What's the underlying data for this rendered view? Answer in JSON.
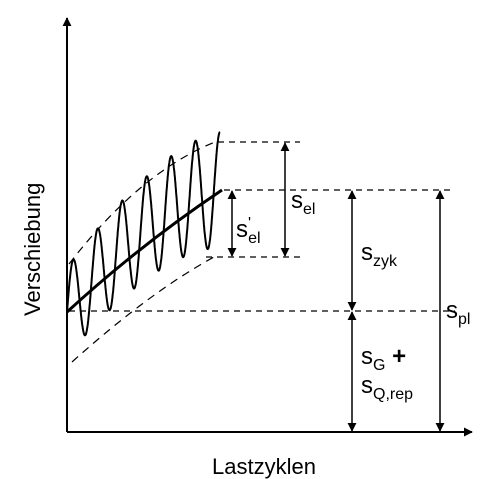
{
  "axes": {
    "x_label": "Lastzyklen",
    "y_label": "Verschiebung"
  },
  "labels": {
    "s_el": {
      "base": "s",
      "sub": "el"
    },
    "s_el_prime": {
      "base": "s",
      "sup": "'",
      "sub": "el"
    },
    "s_zyk": {
      "base": "s",
      "sub": "zyk"
    },
    "s_pl": {
      "base": "s",
      "sub": "pl"
    },
    "s_G": {
      "base": "s",
      "sub": "G",
      "suffix": " +"
    },
    "s_Q_rep": {
      "base": "s",
      "sub": "Q,rep"
    }
  },
  "colors": {
    "ink": "#000000",
    "background": "#ffffff"
  }
}
